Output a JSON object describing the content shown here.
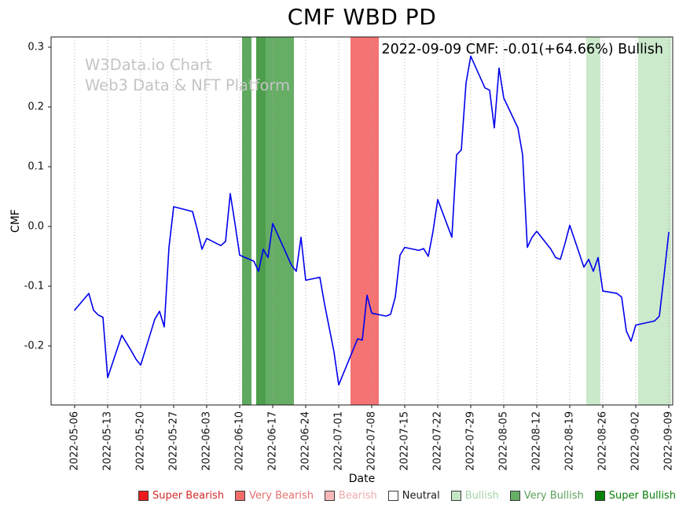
{
  "title": "CMF WBD PD",
  "annotation": "2022-09-09 CMF: -0.01(+64.66%) Bullish",
  "watermark": {
    "line1": "W3Data.io Chart",
    "line2": "Web3 Data & NFT Platform"
  },
  "axes": {
    "x_label": "Date",
    "y_label": "CMF"
  },
  "colors": {
    "line": "#0000ee",
    "grid": "#ababab",
    "frame": "#1a1a1a",
    "watermark": "#c4c4c4",
    "background": "#ffffff"
  },
  "legend": {
    "items": [
      {
        "label": "Super Bearish",
        "color": "#ee1c1c",
        "label_color": "#d22a2a"
      },
      {
        "label": "Very Bearish",
        "color": "#f26c6c",
        "label_color": "#e47070"
      },
      {
        "label": "Bearish",
        "color": "#f8b8b8",
        "label_color": "#efabab"
      },
      {
        "label": "Neutral",
        "color": "#ffffff",
        "label_color": "#1a1a1a"
      },
      {
        "label": "Bullish",
        "color": "#c4e5c4",
        "label_color": "#a5d2a5"
      },
      {
        "label": "Very Bullish",
        "color": "#66ad66",
        "label_color": "#5da05d"
      },
      {
        "label": "Super Bullish",
        "color": "#0a800a",
        "label_color": "#0a800a"
      }
    ]
  },
  "chart_data": {
    "type": "line",
    "title": "CMF WBD PD",
    "xlabel": "Date",
    "ylabel": "CMF",
    "grid": "vertical-dotted",
    "legend_position": "bottom",
    "ylim": [
      -0.2987,
      0.3171
    ],
    "xlim_days": [
      -5,
      126.83
    ],
    "y_ticks": [
      {
        "value": 0.3,
        "label": "0.3"
      },
      {
        "value": 0.2,
        "label": "0.2"
      },
      {
        "value": 0.1,
        "label": "0.1"
      },
      {
        "value": 0.0,
        "label": "0.0"
      },
      {
        "value": -0.1,
        "label": "-0.1"
      },
      {
        "value": -0.2,
        "label": "-0.2"
      }
    ],
    "x_ticks": [
      "2022-05-06",
      "2022-05-13",
      "2022-05-20",
      "2022-05-27",
      "2022-06-03",
      "2022-06-10",
      "2022-06-17",
      "2022-06-24",
      "2022-07-01",
      "2022-07-08",
      "2022-07-15",
      "2022-07-22",
      "2022-07-29",
      "2022-08-05",
      "2022-08-12",
      "2022-08-19",
      "2022-08-26",
      "2022-09-02",
      "2022-09-09"
    ],
    "bands": [
      {
        "start": "2022-06-11",
        "end": "2022-06-12",
        "level": "Very Bullish",
        "color": "#5fa95f"
      },
      {
        "start": "2022-06-14",
        "end": "2022-06-15",
        "level": "Very Bullish",
        "color": "#4c9e4c"
      },
      {
        "start": "2022-06-16",
        "end": "2022-06-21",
        "level": "Very Bullish",
        "color": "#66ad66"
      },
      {
        "start": "2022-07-04",
        "end": "2022-07-09",
        "level": "Very Bearish",
        "color": "#f57373"
      },
      {
        "start": "2022-08-23",
        "end": "2022-08-25",
        "level": "Bullish",
        "color": "#cbe9cb"
      },
      {
        "start": "2022-09-03",
        "end": "2022-09-09",
        "level": "Bullish",
        "color": "#cbe9cb"
      }
    ],
    "series": [
      {
        "name": "CMF",
        "color": "#0000ee",
        "points": [
          [
            "2022-05-06",
            -0.14
          ],
          [
            "2022-05-09",
            -0.112
          ],
          [
            "2022-05-10",
            -0.14
          ],
          [
            "2022-05-11",
            -0.148
          ],
          [
            "2022-05-12",
            -0.152
          ],
          [
            "2022-05-13",
            -0.253
          ],
          [
            "2022-05-16",
            -0.182
          ],
          [
            "2022-05-17",
            -0.195
          ],
          [
            "2022-05-18",
            -0.208
          ],
          [
            "2022-05-19",
            -0.222
          ],
          [
            "2022-05-20",
            -0.232
          ],
          [
            "2022-05-23",
            -0.155
          ],
          [
            "2022-05-24",
            -0.142
          ],
          [
            "2022-05-25",
            -0.168
          ],
          [
            "2022-05-26",
            -0.035
          ],
          [
            "2022-05-27",
            0.033
          ],
          [
            "2022-05-31",
            0.025
          ],
          [
            "2022-06-01",
            -0.005
          ],
          [
            "2022-06-02",
            -0.038
          ],
          [
            "2022-06-03",
            -0.02
          ],
          [
            "2022-06-06",
            -0.032
          ],
          [
            "2022-06-07",
            -0.025
          ],
          [
            "2022-06-08",
            0.055
          ],
          [
            "2022-06-09",
            0.005
          ],
          [
            "2022-06-10",
            -0.048
          ],
          [
            "2022-06-13",
            -0.058
          ],
          [
            "2022-06-14",
            -0.075
          ],
          [
            "2022-06-15",
            -0.038
          ],
          [
            "2022-06-16",
            -0.052
          ],
          [
            "2022-06-17",
            0.005
          ],
          [
            "2022-06-21",
            -0.065
          ],
          [
            "2022-06-22",
            -0.075
          ],
          [
            "2022-06-23",
            -0.018
          ],
          [
            "2022-06-24",
            -0.09
          ],
          [
            "2022-06-27",
            -0.085
          ],
          [
            "2022-06-28",
            -0.13
          ],
          [
            "2022-06-29",
            -0.17
          ],
          [
            "2022-06-30",
            -0.21
          ],
          [
            "2022-07-01",
            -0.265
          ],
          [
            "2022-07-05",
            -0.188
          ],
          [
            "2022-07-06",
            -0.19
          ],
          [
            "2022-07-07",
            -0.115
          ],
          [
            "2022-07-08",
            -0.145
          ],
          [
            "2022-07-11",
            -0.15
          ],
          [
            "2022-07-12",
            -0.147
          ],
          [
            "2022-07-13",
            -0.118
          ],
          [
            "2022-07-14",
            -0.048
          ],
          [
            "2022-07-15",
            -0.035
          ],
          [
            "2022-07-18",
            -0.04
          ],
          [
            "2022-07-19",
            -0.037
          ],
          [
            "2022-07-20",
            -0.05
          ],
          [
            "2022-07-21",
            -0.008
          ],
          [
            "2022-07-22",
            0.045
          ],
          [
            "2022-07-25",
            -0.018
          ],
          [
            "2022-07-26",
            0.12
          ],
          [
            "2022-07-27",
            0.128
          ],
          [
            "2022-07-28",
            0.24
          ],
          [
            "2022-07-29",
            0.285
          ],
          [
            "2022-08-01",
            0.232
          ],
          [
            "2022-08-02",
            0.228
          ],
          [
            "2022-08-03",
            0.165
          ],
          [
            "2022-08-04",
            0.265
          ],
          [
            "2022-08-05",
            0.215
          ],
          [
            "2022-08-08",
            0.165
          ],
          [
            "2022-08-09",
            0.12
          ],
          [
            "2022-08-10",
            -0.035
          ],
          [
            "2022-08-11",
            -0.018
          ],
          [
            "2022-08-12",
            -0.008
          ],
          [
            "2022-08-15",
            -0.038
          ],
          [
            "2022-08-16",
            -0.052
          ],
          [
            "2022-08-17",
            -0.055
          ],
          [
            "2022-08-18",
            -0.028
          ],
          [
            "2022-08-19",
            0.002
          ],
          [
            "2022-08-22",
            -0.068
          ],
          [
            "2022-08-23",
            -0.055
          ],
          [
            "2022-08-24",
            -0.075
          ],
          [
            "2022-08-25",
            -0.052
          ],
          [
            "2022-08-26",
            -0.108
          ],
          [
            "2022-08-29",
            -0.112
          ],
          [
            "2022-08-30",
            -0.118
          ],
          [
            "2022-08-31",
            -0.175
          ],
          [
            "2022-09-01",
            -0.192
          ],
          [
            "2022-09-02",
            -0.165
          ],
          [
            "2022-09-06",
            -0.158
          ],
          [
            "2022-09-07",
            -0.15
          ],
          [
            "2022-09-08",
            -0.082
          ],
          [
            "2022-09-09",
            -0.01
          ]
        ]
      }
    ]
  }
}
